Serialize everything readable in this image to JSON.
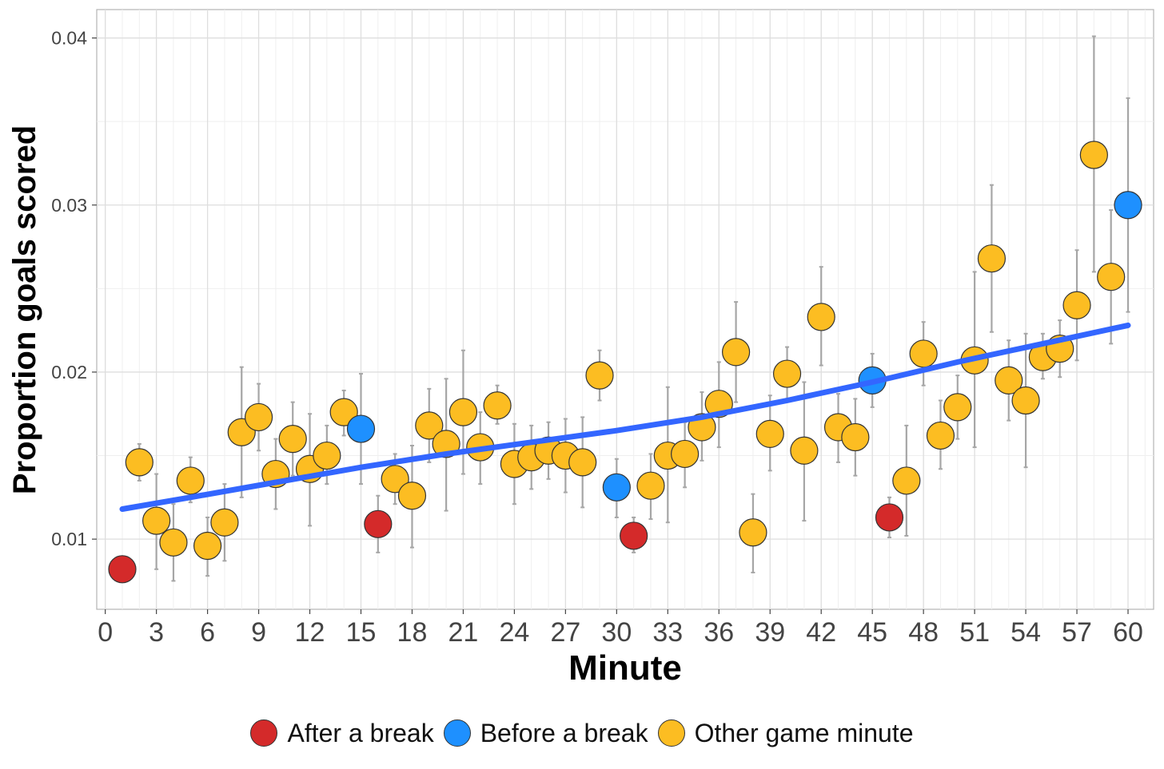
{
  "chart_data": {
    "type": "scatter",
    "xlabel": "Minute",
    "ylabel": "Proportion goals scored",
    "xlim": [
      -0.5,
      61.5
    ],
    "ylim": [
      0.0058,
      0.0417
    ],
    "x_ticks": [
      0,
      3,
      6,
      9,
      12,
      15,
      18,
      21,
      24,
      27,
      30,
      33,
      36,
      39,
      42,
      45,
      48,
      51,
      54,
      57,
      60
    ],
    "x_tick_labels": [
      "0",
      "3",
      "6",
      "9",
      "12",
      "15",
      "18",
      "21",
      "24",
      "27",
      "30",
      "33",
      "36",
      "39",
      "42",
      "45",
      "48",
      "51",
      "54",
      "57",
      "60"
    ],
    "y_ticks": [
      0.01,
      0.02,
      0.03,
      0.04
    ],
    "y_tick_labels": [
      "0.01",
      "0.02",
      "0.03",
      "0.04"
    ],
    "grid": true,
    "legend_position": "bottom",
    "categories": [
      {
        "key": "after",
        "name": "After a break",
        "color": "#d42a2a"
      },
      {
        "key": "before",
        "name": "Before a break",
        "color": "#1e90ff"
      },
      {
        "key": "other",
        "name": "Other game minute",
        "color": "#fcbd22"
      }
    ],
    "points": [
      {
        "x": 1,
        "y": 0.0082,
        "lo": null,
        "hi": null,
        "cat": "after"
      },
      {
        "x": 2,
        "y": 0.0146,
        "lo": 0.0135,
        "hi": 0.0157,
        "cat": "other"
      },
      {
        "x": 3,
        "y": 0.0111,
        "lo": 0.0082,
        "hi": 0.0139,
        "cat": "other"
      },
      {
        "x": 4,
        "y": 0.0098,
        "lo": 0.0075,
        "hi": 0.0121,
        "cat": "other"
      },
      {
        "x": 5,
        "y": 0.0135,
        "lo": 0.0122,
        "hi": 0.0149,
        "cat": "other"
      },
      {
        "x": 6,
        "y": 0.0096,
        "lo": 0.0078,
        "hi": 0.0113,
        "cat": "other"
      },
      {
        "x": 7,
        "y": 0.011,
        "lo": 0.0087,
        "hi": 0.0133,
        "cat": "other"
      },
      {
        "x": 8,
        "y": 0.0164,
        "lo": 0.0125,
        "hi": 0.0203,
        "cat": "other"
      },
      {
        "x": 9,
        "y": 0.0173,
        "lo": 0.0153,
        "hi": 0.0193,
        "cat": "other"
      },
      {
        "x": 10,
        "y": 0.0139,
        "lo": 0.0118,
        "hi": 0.016,
        "cat": "other"
      },
      {
        "x": 11,
        "y": 0.016,
        "lo": 0.0138,
        "hi": 0.0182,
        "cat": "other"
      },
      {
        "x": 12,
        "y": 0.0142,
        "lo": 0.0108,
        "hi": 0.0175,
        "cat": "other"
      },
      {
        "x": 13,
        "y": 0.015,
        "lo": 0.0133,
        "hi": 0.0168,
        "cat": "other"
      },
      {
        "x": 14,
        "y": 0.0176,
        "lo": 0.0162,
        "hi": 0.0189,
        "cat": "other"
      },
      {
        "x": 15,
        "y": 0.0166,
        "lo": 0.0133,
        "hi": 0.0199,
        "cat": "before"
      },
      {
        "x": 16,
        "y": 0.0109,
        "lo": 0.0092,
        "hi": 0.0126,
        "cat": "after"
      },
      {
        "x": 17,
        "y": 0.0136,
        "lo": 0.0121,
        "hi": 0.0151,
        "cat": "other"
      },
      {
        "x": 18,
        "y": 0.0126,
        "lo": 0.0095,
        "hi": 0.0156,
        "cat": "other"
      },
      {
        "x": 19,
        "y": 0.0168,
        "lo": 0.0146,
        "hi": 0.019,
        "cat": "other"
      },
      {
        "x": 20,
        "y": 0.0157,
        "lo": 0.0117,
        "hi": 0.0196,
        "cat": "other"
      },
      {
        "x": 21,
        "y": 0.0176,
        "lo": 0.0139,
        "hi": 0.0213,
        "cat": "other"
      },
      {
        "x": 22,
        "y": 0.0155,
        "lo": 0.0133,
        "hi": 0.0176,
        "cat": "other"
      },
      {
        "x": 23,
        "y": 0.018,
        "lo": 0.0169,
        "hi": 0.0192,
        "cat": "other"
      },
      {
        "x": 24,
        "y": 0.0145,
        "lo": 0.0121,
        "hi": 0.0169,
        "cat": "other"
      },
      {
        "x": 25,
        "y": 0.0149,
        "lo": 0.013,
        "hi": 0.0168,
        "cat": "other"
      },
      {
        "x": 26,
        "y": 0.0153,
        "lo": 0.0136,
        "hi": 0.017,
        "cat": "other"
      },
      {
        "x": 27,
        "y": 0.015,
        "lo": 0.0128,
        "hi": 0.0172,
        "cat": "other"
      },
      {
        "x": 28,
        "y": 0.0146,
        "lo": 0.0119,
        "hi": 0.0173,
        "cat": "other"
      },
      {
        "x": 29,
        "y": 0.0198,
        "lo": 0.0183,
        "hi": 0.0213,
        "cat": "other"
      },
      {
        "x": 30,
        "y": 0.0131,
        "lo": 0.0113,
        "hi": 0.0148,
        "cat": "before"
      },
      {
        "x": 31,
        "y": 0.0102,
        "lo": 0.0092,
        "hi": 0.0113,
        "cat": "after"
      },
      {
        "x": 32,
        "y": 0.0132,
        "lo": 0.0112,
        "hi": 0.0151,
        "cat": "other"
      },
      {
        "x": 33,
        "y": 0.015,
        "lo": 0.011,
        "hi": 0.0191,
        "cat": "other"
      },
      {
        "x": 34,
        "y": 0.0151,
        "lo": 0.0131,
        "hi": 0.017,
        "cat": "other"
      },
      {
        "x": 35,
        "y": 0.0167,
        "lo": 0.0147,
        "hi": 0.0188,
        "cat": "other"
      },
      {
        "x": 36,
        "y": 0.0181,
        "lo": 0.0155,
        "hi": 0.0206,
        "cat": "other"
      },
      {
        "x": 37,
        "y": 0.0212,
        "lo": 0.0182,
        "hi": 0.0242,
        "cat": "other"
      },
      {
        "x": 38,
        "y": 0.0104,
        "lo": 0.008,
        "hi": 0.0127,
        "cat": "other"
      },
      {
        "x": 39,
        "y": 0.0163,
        "lo": 0.0141,
        "hi": 0.0186,
        "cat": "other"
      },
      {
        "x": 40,
        "y": 0.0199,
        "lo": 0.0184,
        "hi": 0.0215,
        "cat": "other"
      },
      {
        "x": 41,
        "y": 0.0153,
        "lo": 0.0111,
        "hi": 0.0194,
        "cat": "other"
      },
      {
        "x": 42,
        "y": 0.0233,
        "lo": 0.0204,
        "hi": 0.0263,
        "cat": "other"
      },
      {
        "x": 43,
        "y": 0.0167,
        "lo": 0.0146,
        "hi": 0.0187,
        "cat": "other"
      },
      {
        "x": 44,
        "y": 0.0161,
        "lo": 0.0138,
        "hi": 0.0184,
        "cat": "other"
      },
      {
        "x": 45,
        "y": 0.0195,
        "lo": 0.0179,
        "hi": 0.0211,
        "cat": "before"
      },
      {
        "x": 46,
        "y": 0.0113,
        "lo": 0.0101,
        "hi": 0.0125,
        "cat": "after"
      },
      {
        "x": 47,
        "y": 0.0135,
        "lo": 0.0102,
        "hi": 0.0168,
        "cat": "other"
      },
      {
        "x": 48,
        "y": 0.0211,
        "lo": 0.0192,
        "hi": 0.023,
        "cat": "other"
      },
      {
        "x": 49,
        "y": 0.0162,
        "lo": 0.0142,
        "hi": 0.0183,
        "cat": "other"
      },
      {
        "x": 50,
        "y": 0.0179,
        "lo": 0.016,
        "hi": 0.0198,
        "cat": "other"
      },
      {
        "x": 51,
        "y": 0.0207,
        "lo": 0.0155,
        "hi": 0.026,
        "cat": "other"
      },
      {
        "x": 52,
        "y": 0.0268,
        "lo": 0.0224,
        "hi": 0.0312,
        "cat": "other"
      },
      {
        "x": 53,
        "y": 0.0195,
        "lo": 0.0171,
        "hi": 0.0219,
        "cat": "other"
      },
      {
        "x": 54,
        "y": 0.0183,
        "lo": 0.0143,
        "hi": 0.0223,
        "cat": "other"
      },
      {
        "x": 55,
        "y": 0.0209,
        "lo": 0.0196,
        "hi": 0.0223,
        "cat": "other"
      },
      {
        "x": 56,
        "y": 0.0214,
        "lo": 0.0197,
        "hi": 0.0231,
        "cat": "other"
      },
      {
        "x": 57,
        "y": 0.024,
        "lo": 0.0207,
        "hi": 0.0273,
        "cat": "other"
      },
      {
        "x": 58,
        "y": 0.033,
        "lo": 0.026,
        "hi": 0.0401,
        "cat": "other"
      },
      {
        "x": 59,
        "y": 0.0257,
        "lo": 0.0217,
        "hi": 0.0297,
        "cat": "other"
      },
      {
        "x": 60,
        "y": 0.03,
        "lo": 0.0236,
        "hi": 0.0364,
        "cat": "before"
      }
    ],
    "trend_line": {
      "color": "#3366ff",
      "x": [
        1,
        5,
        10,
        15,
        20,
        25,
        30,
        35,
        40,
        45,
        50,
        55,
        60
      ],
      "y": [
        0.0118,
        0.0125,
        0.0134,
        0.0143,
        0.0151,
        0.0158,
        0.0165,
        0.0173,
        0.0183,
        0.0194,
        0.0206,
        0.0217,
        0.0228
      ]
    }
  }
}
